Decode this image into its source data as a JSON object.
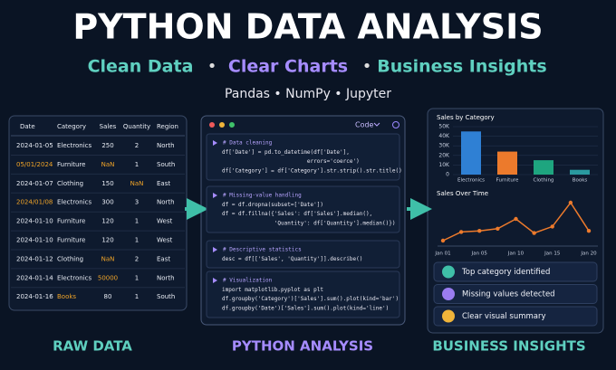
{
  "header": {
    "title": "PYTHON DATA ANALYSIS",
    "tagline": [
      "Clean Data",
      "Clear Charts",
      "Business Insights"
    ],
    "separator": "•",
    "tools": "Pandas • NumPy • Jupyter"
  },
  "raw_data": {
    "columns": [
      "Date",
      "Category",
      "Sales",
      "Quantity",
      "Region"
    ],
    "rows": [
      [
        "2024-01-05",
        "Electronics",
        "250",
        "2",
        "North"
      ],
      [
        "05/01/2024",
        "Furniture",
        "NaN",
        "1",
        "South"
      ],
      [
        "2024-01-07",
        "Clothing",
        "150",
        "NaN",
        "East"
      ],
      [
        "2024/01/08",
        "Electronics",
        "300",
        "3",
        "North"
      ],
      [
        "2024-01-10",
        "Furniture",
        "120",
        "1",
        "West"
      ],
      [
        "2024-01-10",
        "Furniture",
        "120",
        "1",
        "West"
      ],
      [
        "2024-01-12",
        "Clothing",
        "NaN",
        "2",
        "East"
      ],
      [
        "2024-01-14",
        "Electronics",
        "50000",
        "1",
        "North"
      ],
      [
        "2024-01-16",
        "Books",
        "80",
        "1",
        "South"
      ]
    ],
    "flagged": [
      [
        1,
        0
      ],
      [
        1,
        2
      ],
      [
        2,
        3
      ],
      [
        3,
        0
      ],
      [
        6,
        2
      ],
      [
        7,
        2
      ],
      [
        8,
        1
      ]
    ],
    "label": "RAW DATA"
  },
  "analysis": {
    "tab": "Code",
    "cells": [
      [
        "# Data cleaning",
        "df['Date'] = pd.to_datetime(df['Date'],",
        "                          errors='coerce')",
        "df['Category'] = df['Category'].str.strip().str.title()"
      ],
      [
        "# Missing-value handling",
        "df = df.dropna(subset=['Date'])",
        "df = df.fillna({'Sales': df['Sales'].median(),",
        "                'Quantity': df['Quantity'].median()})"
      ],
      [
        "# Descriptive statistics",
        "desc = df[['Sales', 'Quantity']].describe()"
      ],
      [
        "# Visualization",
        "import matplotlib.pyplot as plt",
        "df.groupby('Category')['Sales'].sum().plot(kind='bar')",
        "df.groupby('Date')['Sales'].sum().plot(kind='line')"
      ]
    ],
    "label": "PYTHON ANALYSIS"
  },
  "chart_data": [
    {
      "type": "bar",
      "title": "Sales by Category",
      "categories": [
        "Electronics",
        "Furniture",
        "Clothing",
        "Books"
      ],
      "values": [
        45000,
        24000,
        15000,
        5000
      ],
      "colors": [
        "#2f80d4",
        "#ec7a2c",
        "#1ea57f",
        "#2a9aa0"
      ],
      "ylim": [
        0,
        50000
      ],
      "yticks": [
        {
          "value": 0,
          "label": "0"
        },
        {
          "value": 10000,
          "label": "10K"
        },
        {
          "value": 20000,
          "label": "20K"
        },
        {
          "value": 30000,
          "label": "30K"
        },
        {
          "value": 40000,
          "label": "40K"
        },
        {
          "value": 50000,
          "label": "50K"
        }
      ],
      "grid": true
    },
    {
      "type": "line",
      "title": "Sales Over Time",
      "categories": [
        "Jan 01",
        null,
        "Jan 05",
        null,
        "Jan 10",
        null,
        "Jan 15",
        null,
        "Jan 20"
      ],
      "values": [
        10,
        18,
        19,
        21,
        30,
        17,
        23,
        45,
        19
      ],
      "color": "#ec7a2c"
    }
  ],
  "insights": {
    "items": [
      "Top category identified",
      "Missing values detected",
      "Clear visual summary"
    ],
    "label": "BUSINESS INSIGHTS"
  }
}
